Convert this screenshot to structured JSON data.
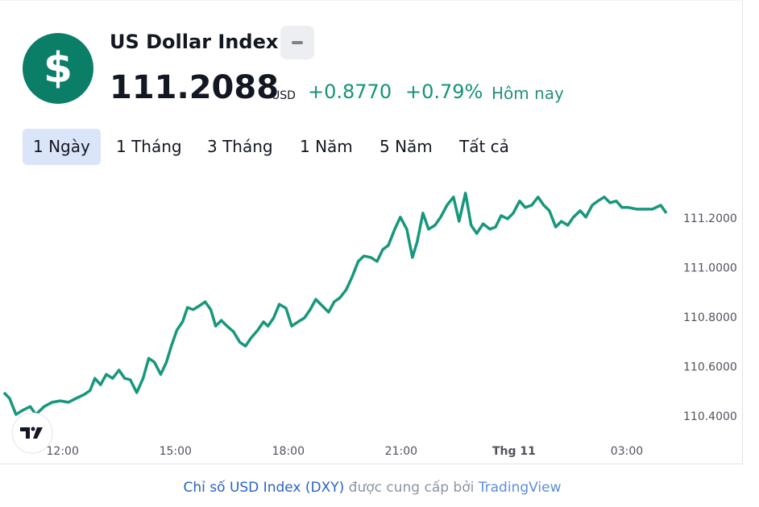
{
  "header": {
    "icon": "$",
    "title": "US Dollar Index",
    "price": "111.2088",
    "currency": "USD",
    "change": "+0.8770",
    "change_percent": "+0.79%",
    "period": "Hôm nay"
  },
  "tabs": [
    "1 Ngày",
    "1 Tháng",
    "3 Tháng",
    "1 Năm",
    "5 Năm",
    "Tất cả"
  ],
  "active_tab": 0,
  "footer": {
    "link": "Chỉ số USD Index (DXY)",
    "text": " được cung cấp bởi ",
    "brand": "TradingView"
  },
  "chart_data": {
    "type": "line",
    "color": "#17977b",
    "x": [
      10.44,
      10.59,
      10.76,
      10.93,
      11.14,
      11.29,
      11.51,
      11.72,
      11.94,
      12.15,
      12.36,
      12.58,
      12.73,
      12.86,
      13.01,
      13.16,
      13.33,
      13.5,
      13.65,
      13.8,
      13.97,
      14.14,
      14.29,
      14.44,
      14.61,
      14.76,
      14.89,
      15.04,
      15.19,
      15.32,
      15.47,
      15.64,
      15.79,
      15.94,
      16.07,
      16.22,
      16.37,
      16.54,
      16.71,
      16.86,
      17.01,
      17.19,
      17.34,
      17.46,
      17.61,
      17.76,
      17.94,
      18.09,
      18.26,
      18.43,
      18.58,
      18.73,
      18.9,
      19.07,
      19.22,
      19.37,
      19.54,
      19.69,
      19.86,
      20.01,
      20.19,
      20.36,
      20.51,
      20.66,
      20.83,
      20.98,
      21.15,
      21.3,
      21.43,
      21.58,
      21.73,
      21.9,
      22.05,
      22.22,
      22.39,
      22.54,
      22.71,
      22.86,
      23.01,
      23.18,
      23.36,
      23.51,
      23.66,
      23.83,
      23.98,
      24.15,
      24.3,
      24.47,
      24.64,
      24.79,
      24.94,
      25.11,
      25.26,
      25.43,
      25.58,
      25.76,
      25.91,
      26.08,
      26.23,
      26.4,
      26.55,
      26.72,
      26.87,
      27.04,
      27.26,
      27.47,
      27.68,
      27.9,
      28.05
    ],
    "values": [
      110.498,
      110.475,
      110.41,
      110.426,
      110.442,
      110.41,
      110.442,
      110.459,
      110.465,
      110.459,
      110.475,
      110.491,
      110.507,
      110.556,
      110.53,
      110.572,
      110.556,
      110.589,
      110.556,
      110.55,
      110.498,
      110.556,
      110.637,
      110.621,
      110.572,
      110.621,
      110.686,
      110.751,
      110.784,
      110.842,
      110.833,
      110.849,
      110.865,
      110.833,
      110.767,
      110.79,
      110.767,
      110.745,
      110.702,
      110.686,
      110.719,
      110.751,
      110.784,
      110.767,
      110.8,
      110.855,
      110.839,
      110.767,
      110.784,
      110.8,
      110.833,
      110.875,
      110.849,
      110.823,
      110.865,
      110.881,
      110.914,
      110.963,
      111.028,
      111.05,
      111.044,
      111.028,
      111.076,
      111.093,
      111.158,
      111.207,
      111.158,
      111.044,
      111.109,
      111.223,
      111.158,
      111.174,
      111.207,
      111.255,
      111.288,
      111.19,
      111.304,
      111.174,
      111.141,
      111.18,
      111.158,
      111.167,
      111.213,
      111.2,
      111.223,
      111.272,
      111.246,
      111.255,
      111.288,
      111.255,
      111.233,
      111.167,
      111.19,
      111.174,
      111.207,
      111.233,
      111.207,
      111.255,
      111.272,
      111.288,
      111.265,
      111.272,
      111.246,
      111.246,
      111.239,
      111.239,
      111.239,
      111.255,
      111.223
    ],
    "xlim": [
      10.4,
      28.2
    ],
    "xticks": [
      {
        "value": 12,
        "label": "12:00"
      },
      {
        "value": 15,
        "label": "15:00"
      },
      {
        "value": 18,
        "label": "18:00"
      },
      {
        "value": 21,
        "label": "21:00"
      },
      {
        "value": 24,
        "label": "Thg 11"
      },
      {
        "value": 27,
        "label": "03:00"
      }
    ],
    "bold_xticks": [
      4
    ],
    "ylim": [
      110.215,
      111.385
    ],
    "yticks": [
      {
        "value": 110.4,
        "label": "110.4000"
      },
      {
        "value": 110.6,
        "label": "110.6000"
      },
      {
        "value": 110.8,
        "label": "110.8000"
      },
      {
        "value": 111.0,
        "label": "111.0000"
      },
      {
        "value": 111.2,
        "label": "111.2000"
      }
    ],
    "grid": false
  }
}
